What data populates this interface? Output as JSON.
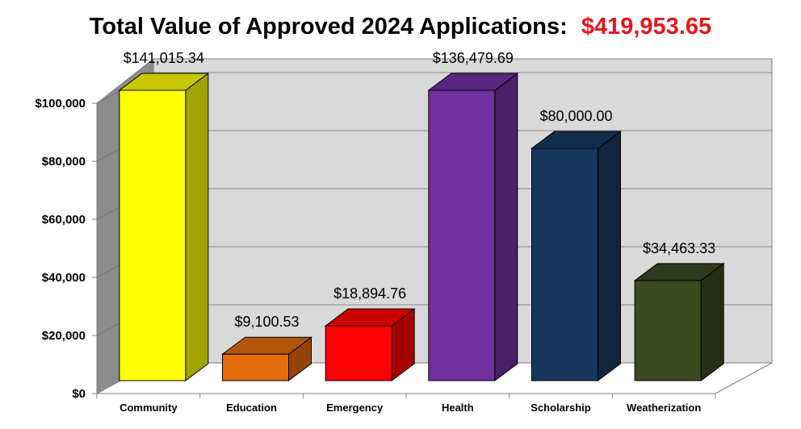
{
  "chart_data": {
    "type": "bar",
    "title": "Total Value of Approved 2024 Applications:",
    "title_total": "$419,953.65",
    "categories": [
      "Community",
      "Education",
      "Emergency",
      "Health",
      "Scholarship",
      "Weatherization"
    ],
    "values": [
      141015.34,
      9100.53,
      18894.76,
      136479.69,
      80000.0,
      34463.33
    ],
    "data_labels": [
      "$141,015.34",
      "$9,100.53",
      "$18,894.76",
      "$136,479.69",
      "$80,000.00",
      "$34,463.33"
    ],
    "y_ticks": [
      "$0",
      "$20,000",
      "$40,000",
      "$60,000",
      "$80,000",
      "$100,000"
    ],
    "ylim": [
      0,
      100000
    ],
    "xlabel": "",
    "ylabel": "",
    "grid": true,
    "legend": "none",
    "colors": {
      "bars": [
        "#ffff00",
        "#e46c0a",
        "#ff0000",
        "#7030a0",
        "#17375e",
        "#3b4a21"
      ],
      "bars_side": [
        "#a3a300",
        "#934507",
        "#a60000",
        "#481f68",
        "#0f243d",
        "#262f15"
      ],
      "bars_top": [
        "#c8c800",
        "#b35508",
        "#cc0000",
        "#5a2781",
        "#132d4c",
        "#2f3a1a"
      ],
      "title_total": "#e8141c",
      "back_wall": "#d9d9d9",
      "side_wall": "#8c8c8c",
      "grid": "#8c8c8c"
    }
  }
}
